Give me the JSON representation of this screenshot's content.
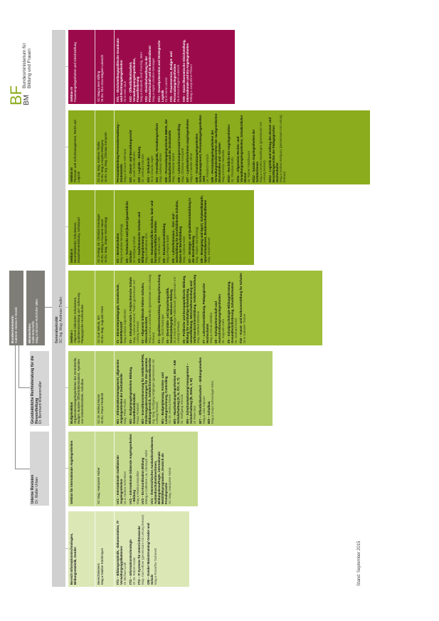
{
  "logo": {
    "bm": "BM",
    "bf": "BF",
    "line1": "Bundesministerium für",
    "line2": "Bildung und Frauen"
  },
  "colors": {
    "section_iv": "#9b0b4b",
    "section_iii": "#8aac1d",
    "section_ii": "#8aac1d",
    "section_i": "#9fbf3b",
    "budget": "#b3cf6c",
    "international": "#c7db90",
    "it": "#dbe8b6",
    "grey_bar": "#d0d0d0",
    "leadership": "#7e7d77"
  },
  "minister": {
    "title": "Bundesministerin",
    "name": "Gabriele Heinisch-Hosek"
  },
  "cabinet": {
    "title": "Ministerbüro",
    "role": "Kabinettschefin",
    "name": "Mag.a Simone Rohrhofer MBA"
  },
  "legal_advice": {
    "title": "Grundsätzliche Rechtsberatung für die Ressortleitung",
    "name": "Dr. Bernhard Wiesenmüller"
  },
  "audit": {
    "title": "Interne Revision",
    "name": "Dr. Walter Urban"
  },
  "general_secretary": {
    "title": "Generalsekretär",
    "name": "SC Ing. Mag. Andreas Thaller"
  },
  "status": "Stand: September 2015",
  "sections": [
    {
      "title": "Sektion IV",
      "subtitle": "Frauenangelegenheiten und Gleichstellung",
      "heads": [
        "SC Mag.a Ines Stilling",
        "St.Stv. Dr.in Eva Wagner-Lukesch"
      ],
      "units": [
        {
          "title": "IV/1 – Gleichstellungspolitische Grundsatz- und Rechtsangelegenheiten",
          "head": "Dr.in Ines Jauk"
        },
        {
          "title": "IV/2 – Öffentlichkeitsarbeit, Verwaltungsangelegenheiten, Frauenförderung",
          "head": "Mag.a Elisabeth Graf-Poschig, MBA"
        },
        {
          "title": "IV/3 – Gleichbehandlung in der Privatwirtschaft und im Bundesdienst",
          "head": "Mag.a Ingrid Löscher-Weninger"
        },
        {
          "title": "IV/4 – Gewaltprävention und Strategische Legistik",
          "head": "Dr.in Anna Lasser"
        },
        {
          "title": "IV/5 – Frauenservice, Budget- und Personalangelegenheiten",
          "head": "Dr.in Eva Wagner-Lukesch"
        },
        {
          "title": "IV/6 – Sozio-Ökonomische Gleichstellung, Internationale und EU-Angelegenheiten",
          "head": "MMag.a Jacqueline Pflaum"
        }
      ]
    },
    {
      "title": "Sektion III",
      "subtitle": "Personal- und Schulmanagement, Recht und Legistik",
      "heads": [
        "SC Ing. Mag. Andreas Thaller",
        "St.Stv. Mag.a Angela Weilguny",
        "St.Stv. Ing. Mag. Christian Kemperle"
      ],
      "units": [
        {
          "title": "Personalabteilung Personalverwaltung – Zentralstelle",
          "head": "Mag.a Simone Hofmann"
        },
        {
          "title": "III/1 – Dienst- und Besoldungsrecht",
          "head": "Dr. Josef Schmidhofer"
        },
        {
          "title": "III/2 – Legistik – Bildung",
          "head": "Dr. Gerhard Münster"
        },
        {
          "title": "III/3 – Schulrecht",
          "head": "Dr.in Claudia Jager"
        },
        {
          "title": "III/4 – Fremdlegistik, Verwaltungsreform",
          "head": "Mag. Andreas Hilmer"
        },
        {
          "title": "III/5 – Personalangelegenheiten BMHS, der Schulaufsicht und der Zentralstelle",
          "head": "Mag. Christian Bruhn"
        },
        {
          "title": "III/6 – Lehrer/innenpersonal-Controlling",
          "head": "Mag. Christian Kemperle"
        },
        {
          "title": "III/7 – Landeslehrer/innen-angelegenheiten",
          "head": "Mag.a Claudia Ohms"
        },
        {
          "title": "III/8 – Grundsatzangelegenheiten Schulmanagement, Personalangelegenheiten AHS",
          "head": "Dr. Friedrich Fortsch"
        },
        {
          "title": "III/9 – Personalangelegenheiten der Verwaltungsbediensteten der nachgeordneten Dienststellen und -schulen",
          "head": "Mag.a Evelyn Hamedla"
        },
        {
          "title": "III/10 – Rechtliche EU-Angelegenheiten",
          "head": "Dr. Christian Ruhs"
        },
        {
          "title": "III/11 – Allgemeine Rechts- und Verwaltungsangelegenheiten, Schulärztlicher Dienst",
          "head": "Dr. Rainer Fankhauser"
        },
        {
          "title": "III/12 – Soziale Angelegenheiten der Schüler/innen",
          "head": "Mag.a Cornelia Handlinger (gemeinsam mit Leitung betraut)"
        },
        {
          "title": "III/13 – Legistik und Vollzug des Dienst- und Besoldungsrechts der Pädagogischen Hochschulen",
          "head": "Mag.a Andrea Weilguny (gemeinsam mit Leitung betraut)"
        }
      ]
    },
    {
      "title": "Sektion II",
      "subtitle": "Berufsbildendes Schulwesen, Erwachsenenbildung, Schulsport",
      "heads": [
        "SC DI Mag. Dr. Christian Dorninger",
        "St.Stv. MMag.a Susanne Hauer",
        "St.Stv. Mag. Jürgen Horschinegg"
      ],
      "units": [
        {
          "title": "II/1 – Berufsschulen",
          "head": "Mag.a Karoline Moschinegg"
        },
        {
          "title": "II/2 – Technische und (kunst-)gewerbliche Schulen",
          "head": "DI Wolfgang Schalt"
        },
        {
          "title": "II/3 – Kaufmännische Schulen und Bildungsberatung",
          "head": "Mag.a Katharina Kiss"
        },
        {
          "title": "II/4 – Humanberufliche Schulen, land- und forstwirtschaftliche Schulen",
          "head": "Mag. Gerhard Orth"
        },
        {
          "title": "II/5 – Erwachsenenbildung",
          "head": "Mag.a Regina Barth"
        },
        {
          "title": "II/6 – Lehrer/innenaus-, -fort- und -weiterbildung für berufsbildende Schulen, Daten der Berufsbildung",
          "head": "Mag. Andreas Eder"
        },
        {
          "title": "II/7 – Strategie- und Qualitätsentwicklung in der Berufsbildung",
          "head": "Mag. Jürgen Horschinegg"
        },
        {
          "title": "II/8 – Bewegung und Sport, Schulwettkämpfe, Sportschulwesen, Bundesschullandheime",
          "head": "Mag. Ewald Bauer"
        }
      ]
    },
    {
      "title": "Sektion I",
      "subtitle": "Allgemein bildendes Schulwesen, Qualitätsentwicklung und -sicherung, Pädagogische Hochschulen",
      "heads": [
        "SC Kurt Nekula, MA",
        "St.Stv. Mag. Augustin Kern"
      ],
      "units": [
        {
          "title": "I/1 – Elementarpädagogik, Grundschule, BAKIP/BASOP",
          "head": "Mag.a Maria Dippelreiter"
        },
        {
          "title": "I/2 – Sekundarstufe I, Polytechnische Schule",
          "head": "Mag. Andreas Werner Thaler (gemeinsam mit Leitung betraut)"
        },
        {
          "title": "I/3 – Allgemein bildende höhere Schulen, Oberstufenreform",
          "head": "Mag.a Anna Leonidaridis (gemeinsam mit Leitung betraut)"
        },
        {
          "title": "I/4 – Qualitätsentwicklung, Bildungsforschung",
          "head": "Mag. Erich Ratzinger"
        },
        {
          "title": "I/5 – Diversitäts- und Sprachenpolitik, Sonderpädagogik, Inklusive Bildung",
          "head": "Dr.in Muriel Warga-Falkenbach (gemeinsam mit Leitung betraut)"
        },
        {
          "title": "I/6 – Politische und Europapolitische Bildung, Bildung für nachhaltige Entwicklung, Umweltbildung, Wirtschaftserziehung und Verbraucher/innenbildung, Verkehrserziehung",
          "head": "Mag. Manfred Wirtitsch"
        },
        {
          "title": "I/7 – Lehrer/innenbildung, Pädagogische Hochschulen",
          "head": "Mag.a Ursula Zahalka"
        },
        {
          "title": "I/8 – Schulpartnerschaft und Ausschreibungsangelegenheiten",
          "head": "Dr. Augustin Kern"
        },
        {
          "title": "I/9 – Schulpsychologie-Bildungsberatung, Gesundheitsförderung, Schulinformation",
          "head": "Dr. Gerhard Krötzl"
        },
        {
          "title": "I/10 – Kunst- und Kulturvermittlung für Schulen",
          "head": "Dr.in Gabriele Tintner"
        }
      ]
    },
    {
      "title": "Budgetsektion",
      "subtitle": "Organisationsangelegenheiten der Zentralstelle, Budget, Bundes-Öffentlichkeitsarbeit, Agenden von Unterrichtsmitteln, Schulbau",
      "heads": [
        "SC Dr. Helmut Moser",
        "St.Stv. Franz Friedrich"
      ],
      "units": [
        {
          "title": "B/1 – Infrastrukturmanagement, allgemeine Angelegenheiten der Zentralstelle",
          "head": "Mag. Peter Fuchs"
        },
        {
          "title": "B/2 – Budgetangelegenheiten Bildung, Gesamtkoordination",
          "head": "Franz Friedrich"
        },
        {
          "title": "B/3 – Investitionssteuerung für AHS/BAKIP/HS, Förderungsabrechnungen für den gesamten Bildungsbereich, Schüler/innenwettbewerbe",
          "head": "Ing. Mag. Wolfgang Höglinger (gemeinsam mit Leitung betraut)"
        },
        {
          "title": "B/4 – Budgetplanung, Kosten- und Leistungsrechnung, Controlling",
          "head": "SC Dr. Helmut Moser"
        },
        {
          "title": "B/5 – Haushaltsangelegenheiten; B/6 – IUB Schulerhaltung (K, N, OÖ, S, T)",
          "head": "Dr. Wolfgang Stoucal"
        },
        {
          "title": "B/6 – Schulraumplanung/-management – Schulerhaltung (B, Stmk, V, W)",
          "head": "DI Peter Diot"
        },
        {
          "title": "B/7 – Öffentlichkeitsarbeit – Bildungsmedien",
          "head": "Mag.a Julia Kapoun"
        },
        {
          "title": "B/8 – Schulbau",
          "head": "Mag.a Sonja Scheuringer-Erler"
        }
      ]
    },
    {
      "title": "Sektion für internationale Angelegenheiten",
      "subtitle": "",
      "heads": [
        "SC Mag. Hanspeter Huber"
      ],
      "units": [
        {
          "title": "IA/1 – Internationale multilaterale Angelegenheiten",
          "head": "Dr.in Andrea Schmölzer"
        },
        {
          "title": "IA/2 – Internationale bilaterale Angelegenheiten – Bildung",
          "head": "Mag.a Martina Maschke"
        },
        {
          "title": "IA/3 – EU-Koordination Bildung",
          "head": "MMag.a Catherine Lia, Christoph Hofer"
        },
        {
          "title": "IA/4 – Österreichisches Auslandsschulwesen, Auslandsschulnehmer/innen, Bildungsbeauftragte, internationale Mobilitätsprogramme, Deutsch als Fremdsprache",
          "head": "SC Mag. Hanspeter Huber"
        }
      ]
    },
    {
      "title": "Bereich Informationstechnologien, Bildungsstatistik, Gender",
      "subtitle": "",
      "heads": [
        "Bereichsleiterin",
        "Mag.a Nadine Strohmayer"
      ],
      "units": [
        {
          "title": "IT/1 – Bildungsstatistik, -dokumentation, IT-Verwaltungsapplikationen",
          "head": "DI Michael Lindl"
        },
        {
          "title": "IT/2 – Informationstechnologie",
          "head": "DI Dr. Robert Kodat"
        },
        {
          "title": "IT/3 – IT-Systeme für Unterrichtszwecke",
          "head": "Mag. Karl Lehner (gemeinsam mit Leitung betraut)"
        },
        {
          "title": "GM – Gender Mainstreaming/ Gender und Schule",
          "head": "Mag.a Roswitha Tschenett"
        }
      ]
    }
  ]
}
